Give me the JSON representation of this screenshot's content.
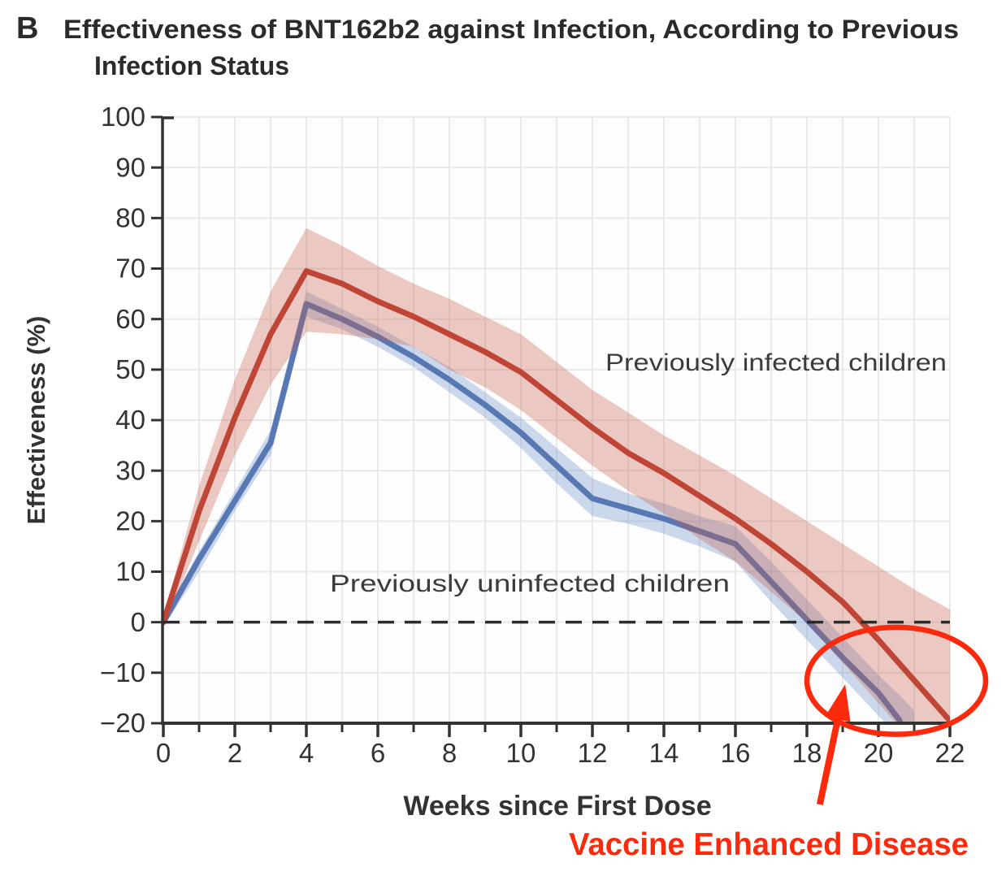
{
  "panel": {
    "label": "B",
    "title_line1": "Effectiveness of BNT162b2 against Infection, According to Previous",
    "title_line2": "Infection Status"
  },
  "colors": {
    "infected_line": "#bf4637",
    "infected_band": "rgba(198,90,70,0.32)",
    "uninfected_line": "#5878b4",
    "uninfected_band": "rgba(102,140,199,0.33)",
    "axis": "#333333",
    "gridline": "#e9e9e9",
    "plot_background": "#fdfdfd",
    "zero_line": "#2b2b2b",
    "annotation_red": "#fb2a0d",
    "text": "#3a3a3a"
  },
  "chart_data": {
    "type": "line",
    "title": "Effectiveness of BNT162b2 against Infection, According to Previous Infection Status",
    "xlabel": "Weeks since First Dose",
    "ylabel": "Effectiveness (%)",
    "xlim": [
      0,
      22
    ],
    "ylim": [
      -20,
      100
    ],
    "grid": true,
    "x_gridline_weeks": [
      0,
      1,
      2,
      3,
      4,
      5,
      6,
      7,
      8,
      9,
      10,
      11,
      12,
      13,
      14,
      15,
      16,
      17,
      18,
      19,
      20,
      21,
      22
    ],
    "x_ticks_major": [
      0,
      2,
      4,
      6,
      8,
      10,
      12,
      14,
      16,
      18,
      20,
      22
    ],
    "x_tick_labels": [
      "0",
      "2",
      "4",
      "6",
      "8",
      "10",
      "12",
      "14",
      "16",
      "18",
      "20",
      "22"
    ],
    "x_ticks_minor": [
      1,
      3,
      5,
      7,
      9,
      11,
      13,
      15,
      17,
      19,
      21
    ],
    "y_tick_values": [
      100,
      90,
      80,
      70,
      60,
      50,
      40,
      30,
      20,
      10,
      0,
      -10,
      -20
    ],
    "y_tick_labels": [
      "100",
      "90",
      "80",
      "70",
      "60",
      "50",
      "40",
      "30",
      "20",
      "10",
      "0",
      "−10",
      "−20"
    ],
    "zero_reference_line": {
      "value": 0,
      "style": "dashed"
    },
    "series": [
      {
        "id": "infected",
        "label": "Previously infected children",
        "line": [
          [
            0,
            0
          ],
          [
            1,
            22
          ],
          [
            2,
            40.5
          ],
          [
            3,
            57
          ],
          [
            4,
            69.5
          ],
          [
            5,
            67
          ],
          [
            6,
            63.5
          ],
          [
            7,
            60.5
          ],
          [
            8,
            57
          ],
          [
            9,
            53.5
          ],
          [
            10,
            49.5
          ],
          [
            11,
            44
          ],
          [
            12,
            38.5
          ],
          [
            13,
            33.5
          ],
          [
            14,
            29.5
          ],
          [
            15,
            25
          ],
          [
            16,
            20.5
          ],
          [
            17,
            15.5
          ],
          [
            18,
            10
          ],
          [
            19,
            4
          ],
          [
            20,
            -3.5
          ],
          [
            21,
            -11.5
          ],
          [
            22,
            -19.5
          ]
        ],
        "ci_upper": [
          [
            0,
            1
          ],
          [
            1,
            27
          ],
          [
            2,
            48
          ],
          [
            3,
            65.5
          ],
          [
            4,
            78
          ],
          [
            5,
            74.5
          ],
          [
            6,
            70.5
          ],
          [
            7,
            67
          ],
          [
            8,
            64
          ],
          [
            9,
            60.5
          ],
          [
            10,
            57
          ],
          [
            11,
            51.5
          ],
          [
            12,
            46
          ],
          [
            13,
            41.5
          ],
          [
            14,
            37
          ],
          [
            15,
            33
          ],
          [
            16,
            29
          ],
          [
            17,
            24.5
          ],
          [
            18,
            20
          ],
          [
            19,
            15.5
          ],
          [
            20,
            11
          ],
          [
            21,
            6.5
          ],
          [
            22,
            2.5
          ]
        ],
        "ci_lower": [
          [
            0,
            -1
          ],
          [
            1,
            16
          ],
          [
            2,
            33
          ],
          [
            3,
            47
          ],
          [
            4,
            57.5
          ],
          [
            5,
            57
          ],
          [
            6,
            56
          ],
          [
            7,
            54.5
          ],
          [
            8,
            50
          ],
          [
            9,
            46.5
          ],
          [
            10,
            42
          ],
          [
            11,
            36.5
          ],
          [
            12,
            31
          ],
          [
            13,
            26
          ],
          [
            14,
            21.5
          ],
          [
            15,
            16.5
          ],
          [
            16,
            12
          ],
          [
            17,
            6
          ],
          [
            18,
            0
          ],
          [
            19,
            -8
          ],
          [
            20,
            -16
          ],
          [
            21,
            -24
          ],
          [
            22,
            -30
          ]
        ]
      },
      {
        "id": "uninfected",
        "label": "Previously uninfected children",
        "line": [
          [
            0,
            0
          ],
          [
            1,
            12.5
          ],
          [
            2,
            24
          ],
          [
            3,
            35.5
          ],
          [
            4,
            63
          ],
          [
            5,
            60
          ],
          [
            6,
            56.5
          ],
          [
            7,
            52.5
          ],
          [
            8,
            48
          ],
          [
            9,
            43
          ],
          [
            10,
            37.5
          ],
          [
            11,
            31
          ],
          [
            12,
            24.5
          ],
          [
            13,
            22.5
          ],
          [
            14,
            20.5
          ],
          [
            15,
            18
          ],
          [
            16,
            15.5
          ],
          [
            17,
            8
          ],
          [
            18,
            0.5
          ],
          [
            19,
            -7
          ],
          [
            20,
            -14
          ],
          [
            20.6,
            -19.5
          ]
        ],
        "ci_upper": [
          [
            0,
            1
          ],
          [
            1,
            14
          ],
          [
            2,
            26
          ],
          [
            3,
            38
          ],
          [
            4,
            65.5
          ],
          [
            5,
            62
          ],
          [
            6,
            58.5
          ],
          [
            7,
            54.5
          ],
          [
            8,
            50.5
          ],
          [
            9,
            45.5
          ],
          [
            10,
            40.5
          ],
          [
            11,
            34.5
          ],
          [
            12,
            28.5
          ],
          [
            13,
            25.5
          ],
          [
            14,
            23.5
          ],
          [
            15,
            21
          ],
          [
            16,
            19
          ],
          [
            17,
            12
          ],
          [
            18,
            4.5
          ],
          [
            19,
            -3
          ],
          [
            20,
            -10.5
          ],
          [
            20.6,
            -14.5
          ],
          [
            21,
            -17.5
          ]
        ],
        "ci_lower": [
          [
            0,
            -1
          ],
          [
            1,
            10
          ],
          [
            2,
            22
          ],
          [
            3,
            33
          ],
          [
            4,
            60.5
          ],
          [
            5,
            58
          ],
          [
            6,
            54.5
          ],
          [
            7,
            50.5
          ],
          [
            8,
            45.5
          ],
          [
            9,
            40.5
          ],
          [
            10,
            34.5
          ],
          [
            11,
            27.5
          ],
          [
            12,
            21
          ],
          [
            13,
            19.5
          ],
          [
            14,
            17.5
          ],
          [
            15,
            15
          ],
          [
            16,
            12
          ],
          [
            17,
            4
          ],
          [
            18,
            -3.5
          ],
          [
            19,
            -11
          ],
          [
            20,
            -18.5
          ],
          [
            20.6,
            -23
          ],
          [
            21,
            -26
          ]
        ]
      }
    ],
    "annotations": {
      "infected_series_label": {
        "text": "Previously infected children"
      },
      "uninfected_series_label": {
        "text": "Previously uninfected children"
      },
      "vaccine_enhanced": {
        "text": "Vaccine Enhanced Disease"
      },
      "ellipse": {
        "week": 20.5,
        "value": -11.6,
        "rx_weeks": 2.5,
        "ry_values": 10.6
      },
      "arrow": {
        "from_week": 18.36,
        "from_value": -36.1,
        "to_week": 19.07,
        "to_value": -12.3
      }
    }
  }
}
